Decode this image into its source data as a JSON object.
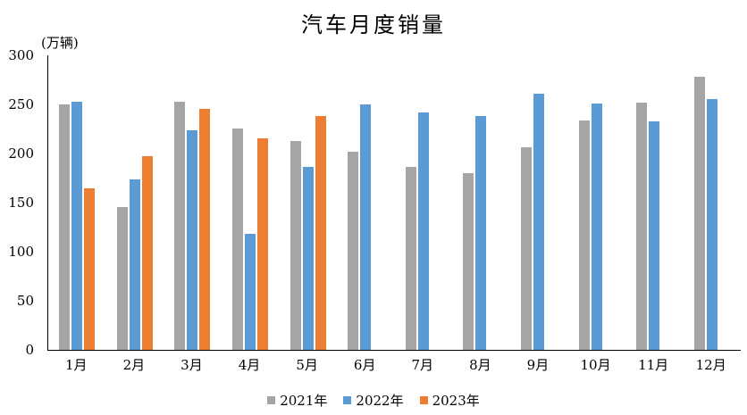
{
  "title": "汽车月度销量",
  "unit_label": "(万辆)",
  "chart_data": {
    "type": "bar",
    "title": "汽车月度销量",
    "ylabel": "(万辆)",
    "categories": [
      "1月",
      "2月",
      "3月",
      "4月",
      "5月",
      "6月",
      "7月",
      "8月",
      "9月",
      "10月",
      "11月",
      "12月"
    ],
    "series": [
      {
        "name": "2021年",
        "color": "#A5A5A5",
        "values": [
          250.3,
          145.5,
          252.6,
          225.2,
          212.8,
          201.5,
          186.4,
          179.9,
          206.7,
          233.3,
          252.2,
          278.6
        ]
      },
      {
        "name": "2022年",
        "color": "#5B9BD5",
        "values": [
          253.1,
          173.7,
          223.4,
          118.1,
          186.2,
          250.2,
          242.0,
          238.3,
          261.0,
          250.5,
          232.8,
          255.9
        ]
      },
      {
        "name": "2023年",
        "color": "#ED7D31",
        "values": [
          164.9,
          197.6,
          245.1,
          215.9,
          238.2,
          null,
          null,
          null,
          null,
          null,
          null,
          null
        ]
      }
    ],
    "ylim": [
      0,
      300
    ],
    "yticks": [
      0,
      50,
      100,
      150,
      200,
      250,
      300
    ],
    "grid": false,
    "legend_position": "bottom"
  }
}
